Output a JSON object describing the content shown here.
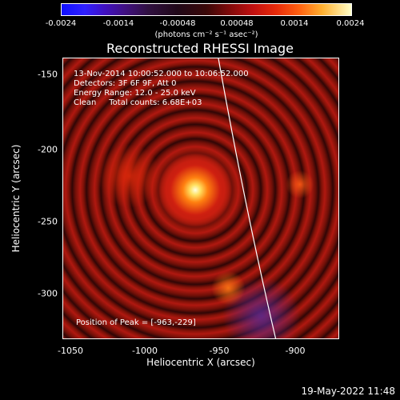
{
  "colorbar": {
    "ticks": [
      "-0.0024",
      "-0.0014",
      "-0.00048",
      "0.00048",
      "0.0014",
      "0.0024"
    ],
    "units": "(photons cm⁻² s⁻¹ asec⁻²)"
  },
  "title": "Reconstructed RHESSI Image",
  "annotations": {
    "time": "13-Nov-2014 10:00:52.000 to 10:06:52.000",
    "detectors": "Detectors: 3F 6F 9F, Att 0",
    "energy": "Energy Range: 12.0 - 25.0 keV",
    "clean": "Clean     Total counts: 6.68E+03",
    "peak": "Position of Peak = [-963,-229]"
  },
  "axes": {
    "xlabel": "Heliocentric X (arcsec)",
    "ylabel": "Heliocentric Y (arcsec)",
    "xticks": [
      "-1050",
      "-1000",
      "-950",
      "-900"
    ],
    "yticks": [
      "-150",
      "-200",
      "-250",
      "-300"
    ]
  },
  "footer": "19-May-2022 11:48"
}
